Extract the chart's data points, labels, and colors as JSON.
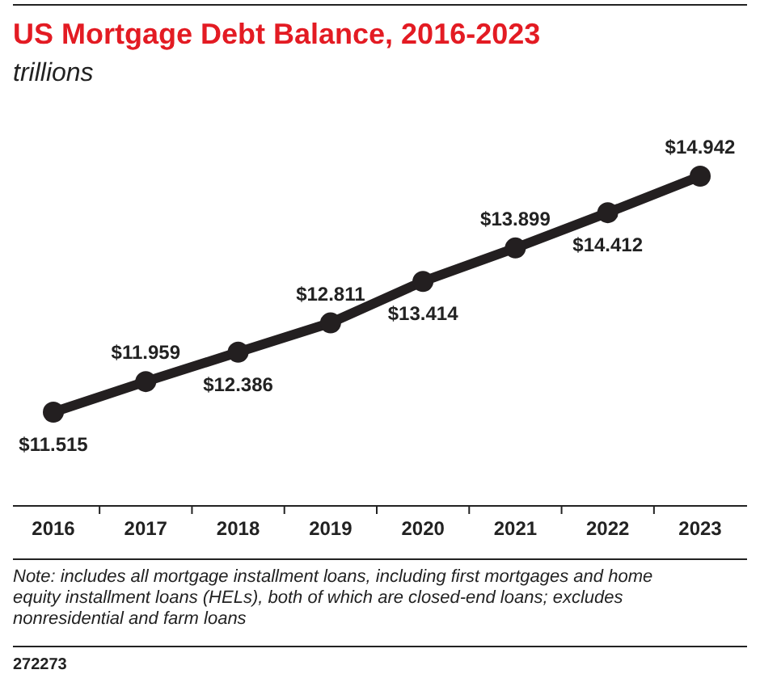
{
  "chart_data": {
    "type": "line",
    "title": "US Mortgage Debt Balance, 2016-2023",
    "subtitle": "trillions",
    "categories": [
      "2016",
      "2017",
      "2018",
      "2019",
      "2020",
      "2021",
      "2022",
      "2023"
    ],
    "series": [
      {
        "color": "#231f20",
        "values": [
          11.515,
          11.959,
          12.386,
          12.811,
          13.414,
          13.899,
          14.412,
          14.942
        ],
        "value_labels": [
          "$11.515",
          "$11.959",
          "$12.386",
          "$12.811",
          "$13.414",
          "$13.899",
          "$14.412",
          "$14.942"
        ]
      }
    ],
    "marker": "circle",
    "line_style": "solid",
    "grid": false,
    "annotations": [
      "Note: includes all mortgage installment loans, including first mortgages and home equity installment loans (HELs), both of which are closed-end loans; excludes nonresidential and farm loans",
      "272273"
    ]
  }
}
